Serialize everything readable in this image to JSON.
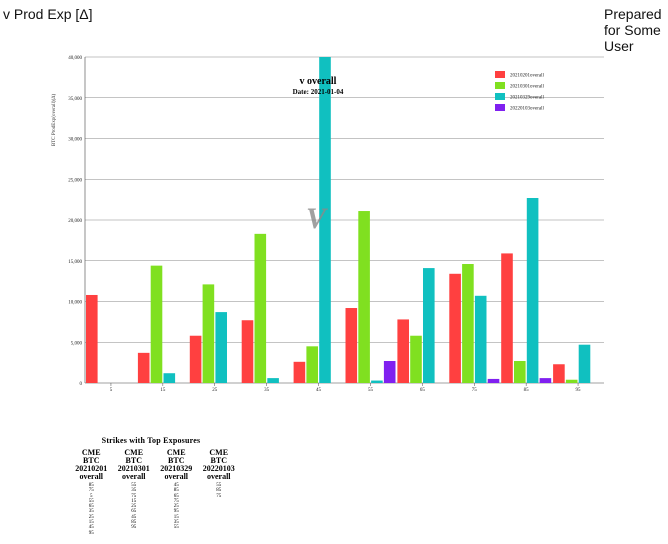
{
  "header": {
    "title": "v Prod Exp [Δ]",
    "prepared": "Prepared for Some User"
  },
  "chart_data": {
    "type": "bar",
    "title": "v overall",
    "subtitle": "Date: 2021-01-04",
    "watermark": "V",
    "xlabel": "",
    "ylabel": "BTC ProdExp(overall)(Δ)",
    "ylim": [
      0,
      40000
    ],
    "yticks": [
      "0",
      "5,000",
      "10,000",
      "15,000",
      "20,000",
      "25,000",
      "30,000",
      "35,000",
      "40,000"
    ],
    "grid": true,
    "legend_position": "top-right",
    "categories": [
      "5",
      "15",
      "25",
      "35",
      "45",
      "55",
      "65",
      "75",
      "85",
      "95"
    ],
    "series": [
      {
        "name": "20210201overall",
        "color": "#ff4040",
        "values": [
          10800,
          3700,
          5800,
          7700,
          2600,
          9200,
          7800,
          13400,
          15900,
          2300
        ]
      },
      {
        "name": "20210301overall",
        "color": "#80e020",
        "values": [
          0,
          14400,
          12100,
          18300,
          4500,
          21100,
          5800,
          14600,
          2700,
          400
        ]
      },
      {
        "name": "20210329overall",
        "color": "#10c0c0",
        "values": [
          0,
          1200,
          8700,
          600,
          40000,
          300,
          14100,
          10700,
          22700,
          4700
        ]
      },
      {
        "name": "20220103overall",
        "color": "#8020f0",
        "values": [
          0,
          0,
          0,
          0,
          0,
          2700,
          0,
          500,
          600,
          0
        ]
      }
    ]
  },
  "strikes_table": {
    "title": "Strikes with Top Exposures",
    "columns": [
      {
        "line1": "CME",
        "line2": "BTC",
        "line3": "20210201",
        "line4": "overall",
        "values": [
          "85",
          "75",
          "5",
          "55",
          "65",
          "35",
          "25",
          "15",
          "45",
          "95"
        ]
      },
      {
        "line1": "CME",
        "line2": "BTC",
        "line3": "20210301",
        "line4": "overall",
        "values": [
          "55",
          "35",
          "75",
          "15",
          "25",
          "65",
          "45",
          "85",
          "95"
        ]
      },
      {
        "line1": "CME",
        "line2": "BTC",
        "line3": "20210329",
        "line4": "overall",
        "values": [
          "45",
          "85",
          "65",
          "75",
          "25",
          "95",
          "15",
          "35",
          "55"
        ]
      },
      {
        "line1": "CME",
        "line2": "BTC",
        "line3": "20220103",
        "line4": "overall",
        "values": [
          "55",
          "85",
          "75"
        ]
      }
    ]
  }
}
